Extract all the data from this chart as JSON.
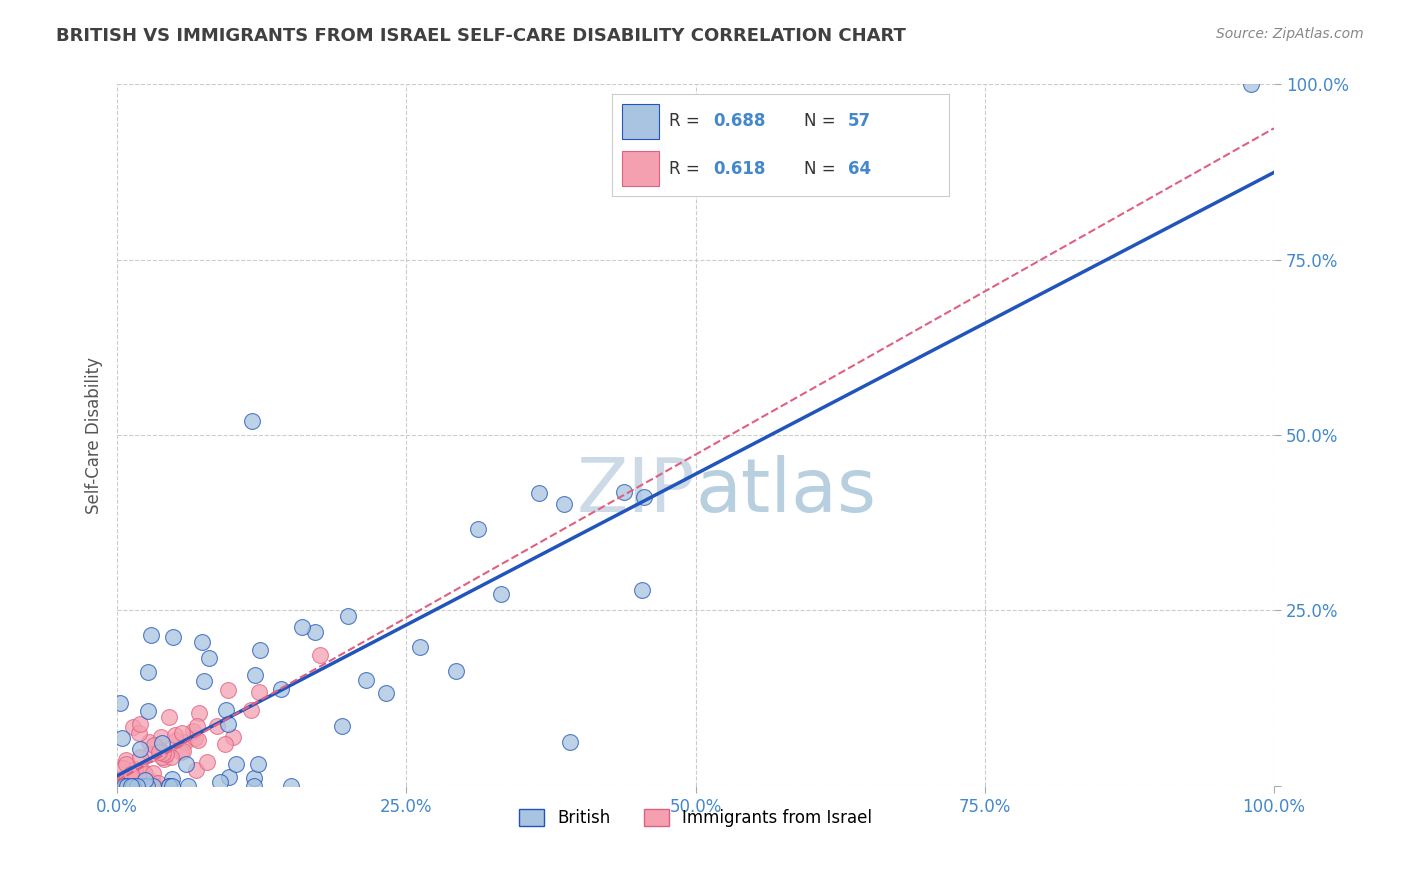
{
  "title": "BRITISH VS IMMIGRANTS FROM ISRAEL SELF-CARE DISABILITY CORRELATION CHART",
  "source": "Source: ZipAtlas.com",
  "ylabel": "Self-Care Disability",
  "xlim": [
    0,
    100
  ],
  "ylim": [
    0,
    100
  ],
  "british_R": 0.688,
  "british_N": 57,
  "israel_R": 0.618,
  "israel_N": 64,
  "british_color": "#a8c4e0",
  "israel_color": "#f4a0b0",
  "british_line_color": "#2255bb",
  "israel_line_color": "#e06080",
  "title_color": "#404040",
  "axis_color": "#4488cc",
  "legend_R_color": "#4488cc",
  "legend_N_color": "#4488cc"
}
